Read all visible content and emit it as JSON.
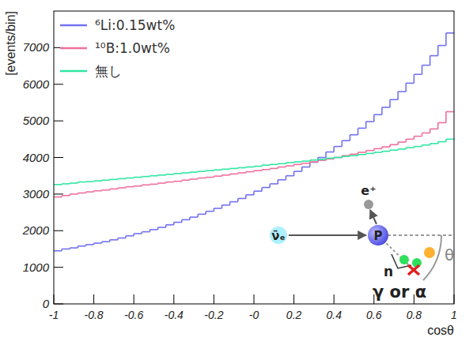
{
  "chart_data": {
    "type": "histogram",
    "x_label": "cosθ",
    "y_label": "[events/bin]",
    "bins": [
      -1,
      -0.96,
      -0.92,
      -0.88,
      -0.84,
      -0.8,
      -0.76,
      -0.72,
      -0.68,
      -0.64,
      -0.6,
      -0.56,
      -0.52,
      -0.48,
      -0.44,
      -0.4,
      -0.36,
      -0.32,
      -0.28,
      -0.24,
      -0.2,
      -0.16,
      -0.12,
      -0.08,
      -0.04,
      0,
      0.04,
      0.08,
      0.12,
      0.16,
      0.2,
      0.24,
      0.28,
      0.32,
      0.36,
      0.4,
      0.44,
      0.48,
      0.52,
      0.56,
      0.6,
      0.64,
      0.68,
      0.72,
      0.76,
      0.8,
      0.84,
      0.88,
      0.92,
      0.96,
      1
    ],
    "series": [
      {
        "name": "⁶Li:0.15wt%",
        "color": "#7272f2",
        "values": [
          1450,
          1500,
          1530,
          1580,
          1620,
          1660,
          1700,
          1750,
          1800,
          1860,
          1920,
          1970,
          2030,
          2090,
          2160,
          2230,
          2300,
          2370,
          2450,
          2530,
          2610,
          2700,
          2790,
          2880,
          2980,
          3080,
          3180,
          3280,
          3390,
          3500,
          3620,
          3740,
          3870,
          4000,
          4150,
          4300,
          4460,
          4620,
          4800,
          4980,
          5170,
          5370,
          5580,
          5800,
          6030,
          6270,
          6520,
          6780,
          7060,
          7400
        ]
      },
      {
        "name": "¹⁰B:1.0wt%",
        "color": "#f0709c",
        "values": [
          2920,
          2960,
          3000,
          3030,
          3060,
          3090,
          3110,
          3140,
          3170,
          3200,
          3220,
          3250,
          3270,
          3300,
          3330,
          3350,
          3380,
          3410,
          3440,
          3460,
          3490,
          3520,
          3550,
          3580,
          3610,
          3640,
          3670,
          3700,
          3740,
          3770,
          3810,
          3840,
          3880,
          3920,
          3960,
          4000,
          4050,
          4090,
          4140,
          4190,
          4240,
          4290,
          4350,
          4420,
          4500,
          4580,
          4670,
          4780,
          4950,
          5250
        ]
      },
      {
        "name": "無し",
        "color": "#2fe6a2",
        "values": [
          3260,
          3280,
          3300,
          3330,
          3340,
          3360,
          3380,
          3400,
          3420,
          3440,
          3460,
          3480,
          3500,
          3520,
          3540,
          3560,
          3580,
          3600,
          3620,
          3640,
          3660,
          3680,
          3700,
          3720,
          3740,
          3760,
          3790,
          3810,
          3830,
          3860,
          3880,
          3900,
          3930,
          3950,
          3980,
          4000,
          4030,
          4050,
          4080,
          4110,
          4140,
          4170,
          4200,
          4230,
          4270,
          4300,
          4340,
          4380,
          4430,
          4500
        ]
      }
    ],
    "xlim": [
      -1,
      1
    ],
    "ylim": [
      0,
      8000
    ],
    "xticks": [
      -1,
      -0.8,
      -0.6,
      -0.4,
      -0.2,
      {
        "value": 0,
        "label": "-0"
      },
      0.2,
      0.4,
      0.6,
      0.8,
      1
    ],
    "yticks": [
      0,
      1000,
      2000,
      3000,
      4000,
      5000,
      6000,
      7000
    ],
    "grid": false,
    "legend": "upper left",
    "annotations": [
      "ν̄ₑ",
      "P",
      "e⁺",
      "n",
      "θ",
      "γ or α"
    ]
  }
}
